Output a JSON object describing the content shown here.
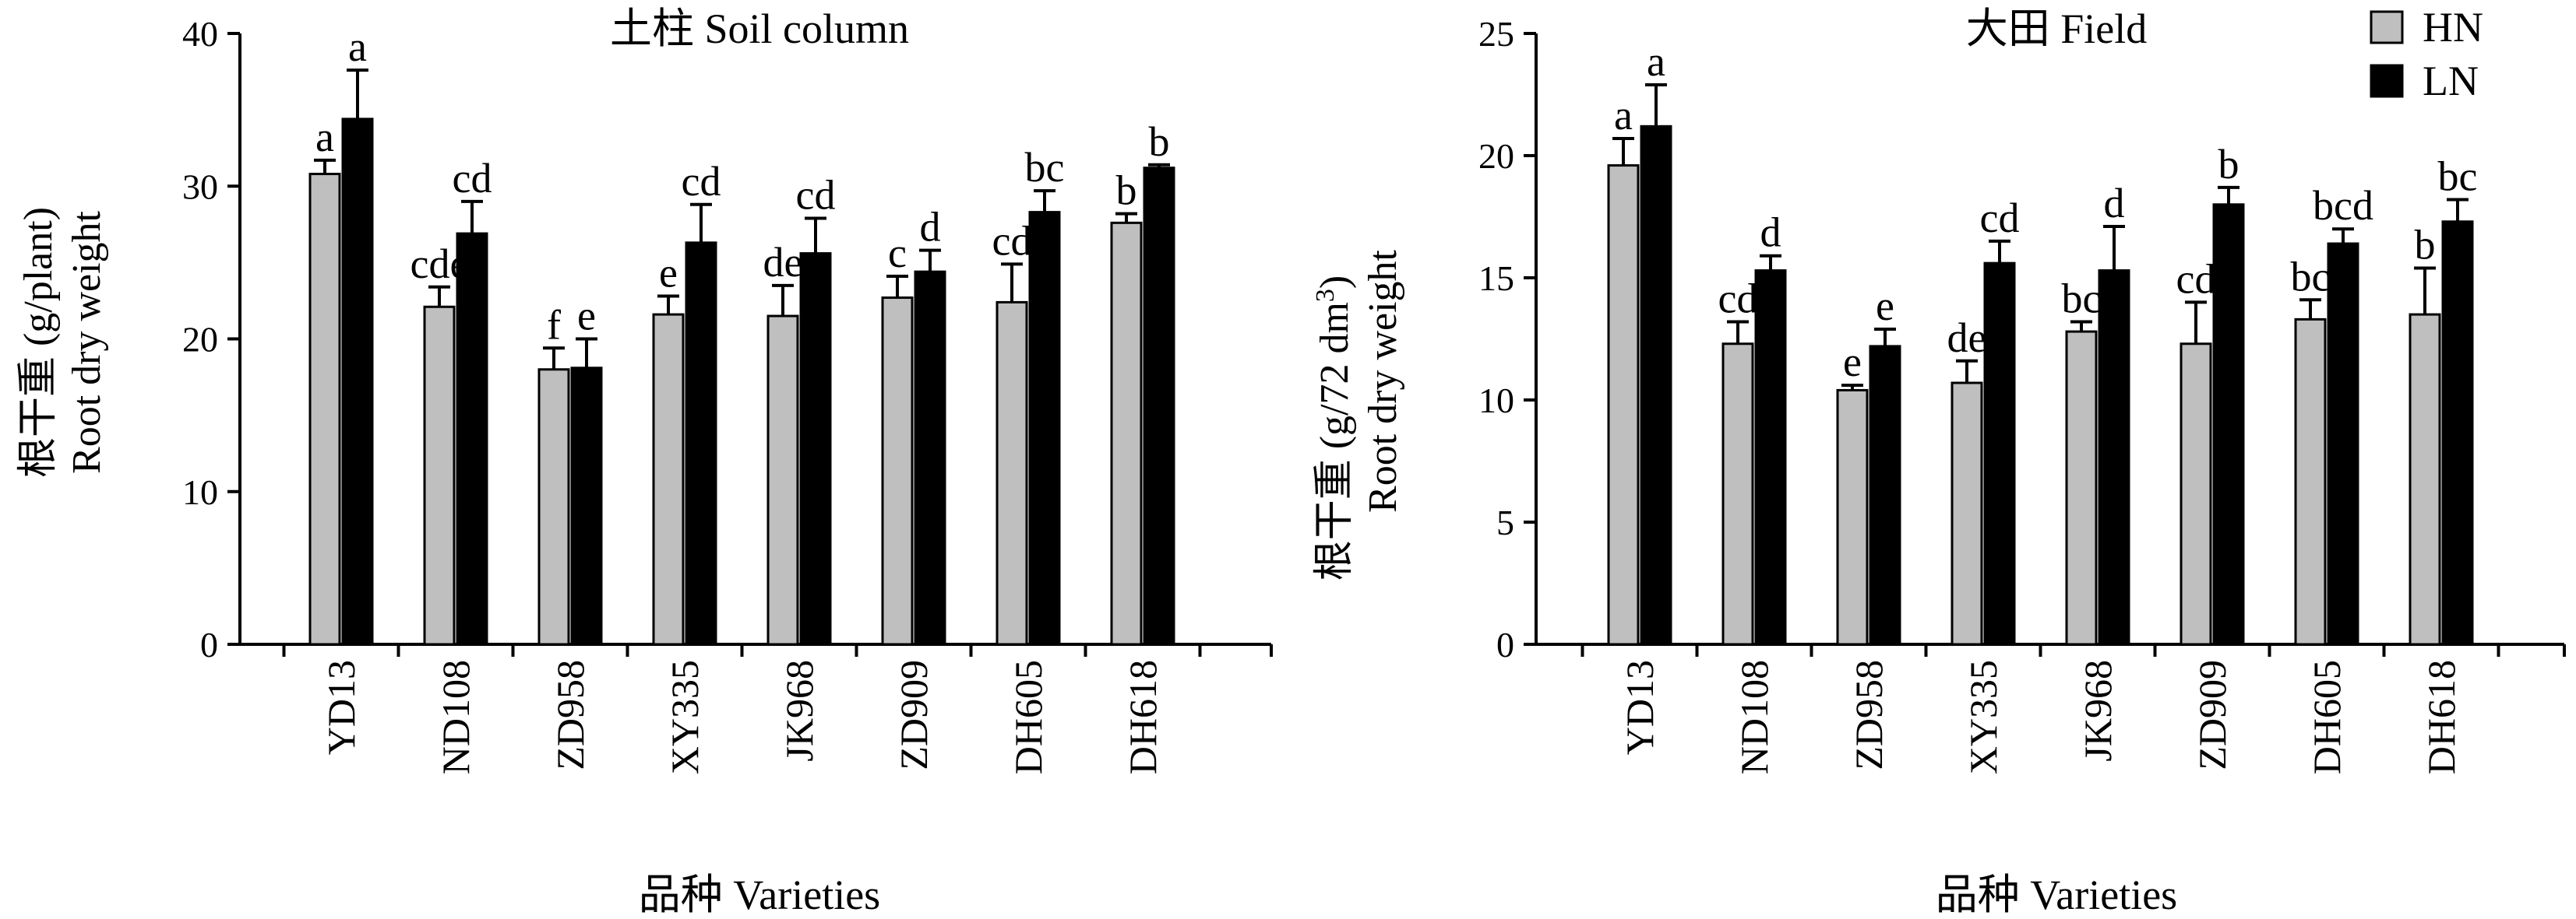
{
  "colors": {
    "HN": "#bfbfbf",
    "LN": "#000000"
  },
  "legend": {
    "placement": "top-right",
    "items": [
      {
        "name": "HN",
        "color": "#bfbfbf"
      },
      {
        "name": "LN",
        "color": "#000000"
      }
    ]
  },
  "chart_data": [
    {
      "type": "bar",
      "title": "土柱 Soil column",
      "ylabel_cn": "根干重 (g/plant)",
      "ylabel_en": "Root dry weight",
      "xlabel": "品种 Varieties",
      "ylim": [
        0,
        40
      ],
      "yticks": [
        0,
        10,
        20,
        30,
        40
      ],
      "grid": false,
      "categories": [
        "YD13",
        "ND108",
        "ZD958",
        "XY335",
        "JK968",
        "ZD909",
        "DH605",
        "DH618"
      ],
      "series": [
        {
          "name": "HN",
          "values": [
            30.8,
            22.1,
            18.0,
            21.6,
            21.5,
            22.7,
            22.4,
            27.6
          ],
          "errors": [
            0.9,
            1.3,
            1.4,
            1.2,
            2.0,
            1.4,
            2.5,
            0.6
          ],
          "labels": [
            "a",
            "cde",
            "f",
            "e",
            "de",
            "c",
            "cd",
            "b"
          ]
        },
        {
          "name": "LN",
          "values": [
            34.4,
            26.9,
            18.1,
            26.3,
            25.6,
            24.4,
            28.3,
            31.2
          ],
          "errors": [
            3.2,
            2.1,
            1.9,
            2.5,
            2.3,
            1.4,
            1.4,
            0.2
          ],
          "labels": [
            "a",
            "cd",
            "e",
            "cd",
            "cd",
            "d",
            "bc",
            "b"
          ]
        }
      ]
    },
    {
      "type": "bar",
      "title": "大田 Field",
      "ylabel_cn": "根干重 (g/72 dm",
      "ylabel_sup": "3",
      "ylabel_close": ")",
      "ylabel_en": "Root dry weight",
      "xlabel": "品种 Varieties",
      "ylim": [
        0,
        25
      ],
      "yticks": [
        0,
        5,
        10,
        15,
        20,
        25
      ],
      "grid": false,
      "categories": [
        "YD13",
        "ND108",
        "ZD958",
        "XY335",
        "JK968",
        "ZD909",
        "DH605",
        "DH618"
      ],
      "series": [
        {
          "name": "HN",
          "values": [
            19.6,
            12.3,
            10.4,
            10.7,
            12.8,
            12.3,
            13.3,
            13.5
          ],
          "errors": [
            1.1,
            0.9,
            0.2,
            0.9,
            0.4,
            1.7,
            0.8,
            1.9
          ],
          "labels": [
            "a",
            "cd",
            "e",
            "de",
            "bc",
            "cd",
            "bc",
            "b"
          ]
        },
        {
          "name": "LN",
          "values": [
            21.2,
            15.3,
            12.2,
            15.6,
            15.3,
            18.0,
            16.4,
            17.3
          ],
          "errors": [
            1.7,
            0.6,
            0.7,
            0.9,
            1.8,
            0.7,
            0.6,
            0.9
          ],
          "labels": [
            "a",
            "d",
            "e",
            "cd",
            "d",
            "b",
            "bcd",
            "bc"
          ]
        }
      ]
    }
  ]
}
